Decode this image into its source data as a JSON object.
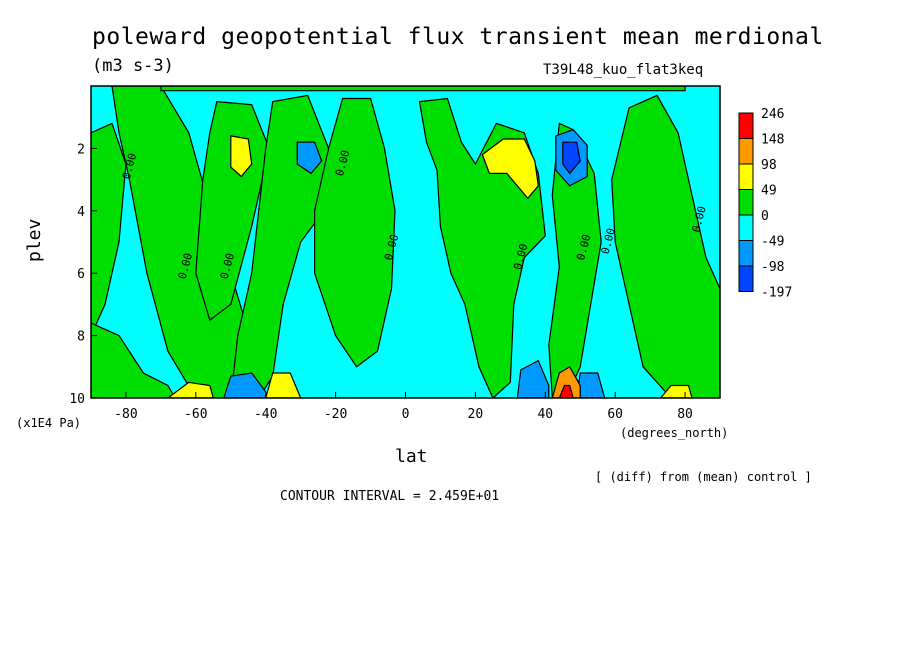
{
  "chart_data": {
    "type": "heatmap",
    "title": "poleward geopotential flux transient mean merdional",
    "units": "(m3 s-3)",
    "run_id": "T39L48_kuo_flat3keq",
    "xlabel": "lat",
    "x_units": "(degrees_north)",
    "ylabel": "plev",
    "y_units": "(x1E4 Pa)",
    "x_range": [
      -90,
      90
    ],
    "y_range": [
      0,
      10
    ],
    "y_inverted": true,
    "x_ticks": [
      -80,
      -60,
      -40,
      -20,
      0,
      20,
      40,
      60,
      80
    ],
    "y_ticks": [
      2,
      4,
      6,
      8,
      10
    ],
    "colorbar": {
      "levels": [
        "246",
        "148",
        "98",
        "49",
        "0",
        "-49",
        "-98",
        "-197"
      ],
      "colors": [
        "#ff0000",
        "#ff9900",
        "#ffff00",
        "#00dd00",
        "#00ffff",
        "#0099ff",
        "#0044ff"
      ]
    },
    "contour_labels": [
      "0.00"
    ],
    "contour_interval": "CONTOUR INTERVAL = 2.459E+01",
    "note": "[ (diff) from (mean) control ]",
    "features": [
      {
        "lat": -48,
        "plev": 2.3,
        "value": 55
      },
      {
        "lat": -28,
        "plev": 2.3,
        "value": -60
      },
      {
        "lat": 30,
        "plev": 2.3,
        "value": 65
      },
      {
        "lat": 48,
        "plev": 2.3,
        "value": -110
      },
      {
        "lat": -45,
        "plev": 9.8,
        "value": -80
      },
      {
        "lat": -35,
        "plev": 9.7,
        "value": 60
      },
      {
        "lat": -62,
        "plev": 9.7,
        "value": 55
      },
      {
        "lat": 37,
        "plev": 9.6,
        "value": -90
      },
      {
        "lat": 46,
        "plev": 9.7,
        "value": 220
      },
      {
        "lat": 52,
        "plev": 9.7,
        "value": -70
      },
      {
        "lat": 78,
        "plev": 9.8,
        "value": 55
      }
    ]
  }
}
